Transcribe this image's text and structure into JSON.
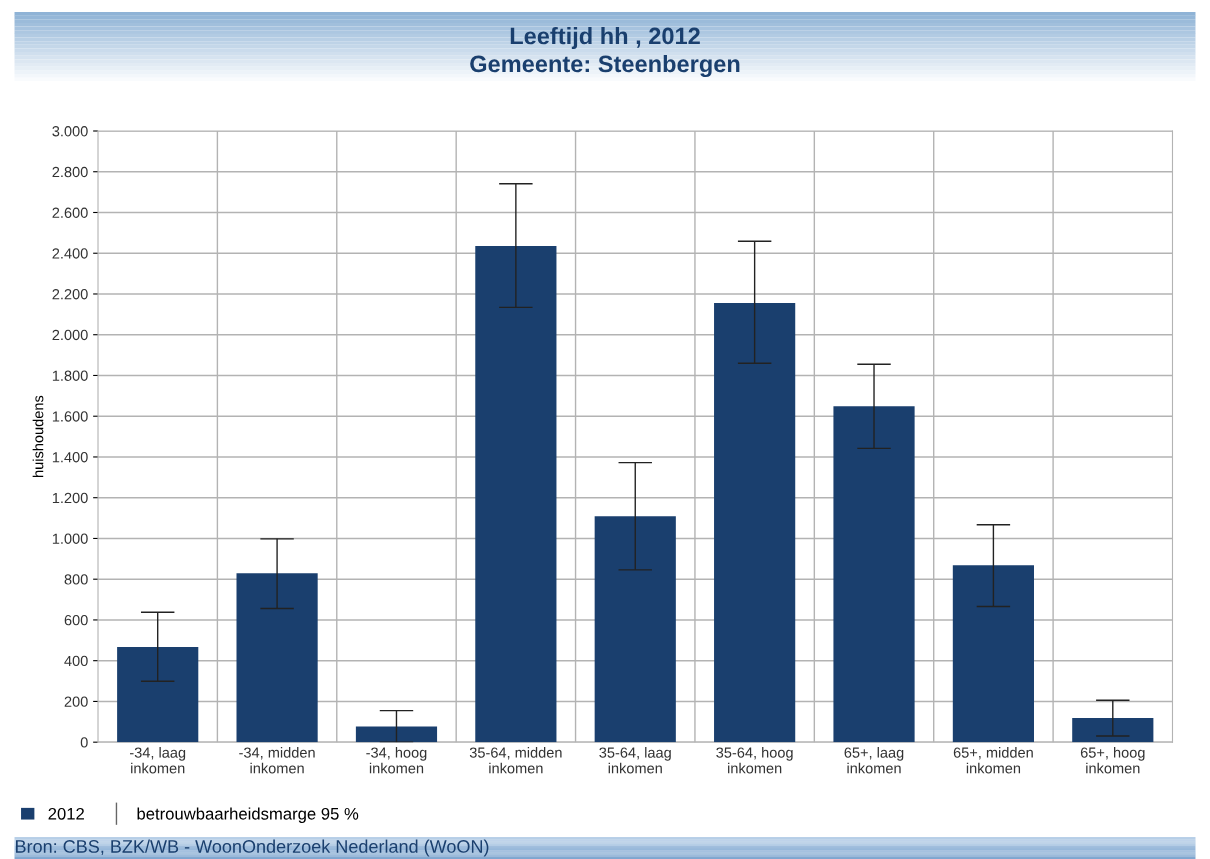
{
  "chart_data": {
    "type": "bar",
    "title": "Leeftijd hh , 2012",
    "subtitle": "Gemeente: Steenbergen",
    "ylabel": "huishoudens",
    "categories": [
      "-34, laag\ninkomen",
      "-34, midden\ninkomen",
      "-34, hoog\ninkomen",
      "35-64, midden\ninkomen",
      "35-64, laag\ninkomen",
      "35-64, hoog\ninkomen",
      "65+, laag\ninkomen",
      "65+, midden\ninkomen",
      "65+, hoog\ninkomen"
    ],
    "series": [
      {
        "name": "2012",
        "color": "#1a3f6e",
        "values": [
          467,
          829,
          77,
          2436,
          1109,
          2156,
          1649,
          868,
          119
        ],
        "errors": [
          [
            299,
            638
          ],
          [
            656,
            998
          ],
          [
            0,
            155
          ],
          [
            2134,
            2741
          ],
          [
            846,
            1372
          ],
          [
            1860,
            2459
          ],
          [
            1442,
            1855
          ],
          [
            666,
            1067
          ],
          [
            30,
            206
          ]
        ]
      }
    ],
    "ylim": [
      0,
      3000
    ],
    "yticks": [
      0,
      200,
      400,
      600,
      800,
      {
        "value": 1000,
        "label": "1.000"
      },
      {
        "value": 1200,
        "label": "1.200"
      },
      {
        "value": 1400,
        "label": "1.400"
      },
      {
        "value": 1600,
        "label": "1.600"
      },
      {
        "value": 1800,
        "label": "1.800"
      },
      {
        "value": 2000,
        "label": "2.000"
      },
      {
        "value": 2200,
        "label": "2.200"
      },
      {
        "value": 2400,
        "label": "2.400"
      },
      {
        "value": 2600,
        "label": "2.600"
      },
      {
        "value": 2800,
        "label": "2.800"
      },
      {
        "value": 3000,
        "label": "3.000"
      }
    ],
    "grid": true,
    "legend": "bottom left",
    "annotations": [
      "betrouwbaarheidsmarge 95 %",
      "Bron: CBS, BZK/WB - WoonOnderzoek Nederland (WoON)"
    ]
  }
}
